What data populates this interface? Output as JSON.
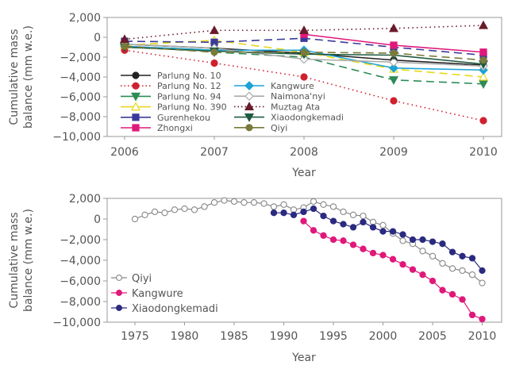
{
  "chart_data": [
    {
      "type": "line",
      "panel": "top",
      "title": "",
      "xlabel": "Year",
      "ylabel": "Cumulative mass balance (mm w.e.)",
      "x": [
        2006,
        2007,
        2008,
        2009,
        2010
      ],
      "xticks": [
        "2006",
        "2007",
        "2008",
        "2009",
        "2010"
      ],
      "yticks": [
        "2,000",
        "0",
        "−2,000",
        "−4,000",
        "−6,000",
        "−8,000",
        "−10,000"
      ],
      "ytick_values": [
        2000,
        0,
        -2000,
        -4000,
        -6000,
        -8000,
        -10000
      ],
      "ylim": [
        -10000,
        2000
      ],
      "xlim": [
        2005.8,
        2010.2
      ],
      "grid": false,
      "legend_position": "lower-left",
      "series": [
        {
          "name": "Parlung No. 10",
          "color": "#222222",
          "style": "solid",
          "marker": "circle",
          "values": [
            -700,
            -1100,
            -1600,
            -2300,
            -2800
          ]
        },
        {
          "name": "Parlung No. 12",
          "color": "#d0202f",
          "style": "dotted",
          "marker": "circle",
          "values": [
            -1300,
            -2600,
            -4000,
            -6400,
            -8400
          ]
        },
        {
          "name": "Parlung No. 94",
          "color": "#2e8b57",
          "style": "dashed",
          "marker": "triangle-down",
          "values": [
            -900,
            -1500,
            -2000,
            -4300,
            -4700
          ]
        },
        {
          "name": "Parlung No. 390",
          "color": "#e8d81a",
          "style": "dashed",
          "marker": "triangle-up-open",
          "values": [
            -800,
            -300,
            -1500,
            -3200,
            -4000
          ]
        },
        {
          "name": "Gurenhekou",
          "color": "#3a3a9a",
          "style": "dashed",
          "marker": "square",
          "values": [
            -400,
            -500,
            -100,
            -1000,
            -1800
          ]
        },
        {
          "name": "Zhongxi",
          "color": "#e0187a",
          "style": "solid",
          "marker": "square",
          "values": [
            null,
            null,
            300,
            -800,
            -1500
          ]
        },
        {
          "name": "Kangwure",
          "color": "#1ba3d6",
          "style": "solid",
          "marker": "diamond",
          "values": [
            -900,
            -1300,
            -1300,
            -3100,
            -3300
          ]
        },
        {
          "name": "Naimona'nyi",
          "color": "#aaaaaa",
          "style": "solid",
          "marker": "diamond-open",
          "values": [
            -700,
            -1100,
            -2200,
            -2500,
            -2900
          ]
        },
        {
          "name": "Muztag Ata",
          "color": "#6a1a2a",
          "style": "dotted",
          "marker": "triangle-up",
          "values": [
            -200,
            700,
            700,
            900,
            1200
          ]
        },
        {
          "name": "Xiaodongkemadi",
          "color": "#1f5a40",
          "style": "solid",
          "marker": "triangle-down",
          "values": [
            -1000,
            -1400,
            -1700,
            -1800,
            -2700
          ]
        },
        {
          "name": "Qiyi",
          "color": "#7a7a3a",
          "style": "dashed",
          "marker": "circle",
          "values": [
            -900,
            -1500,
            -1500,
            -1600,
            -2300
          ]
        }
      ]
    },
    {
      "type": "line",
      "panel": "bottom",
      "title": "",
      "xlabel": "Year",
      "ylabel": "Cumulative mass balance (mm w.e.)",
      "xticks": [
        "1975",
        "1980",
        "1985",
        "1990",
        "1995",
        "2000",
        "2005",
        "2010"
      ],
      "xtick_values": [
        1975,
        1980,
        1985,
        1990,
        1995,
        2000,
        2005,
        2010
      ],
      "yticks": [
        "2,000",
        "0",
        "−2,000",
        "−4,000",
        "−6,000",
        "−8,000",
        "−10,000"
      ],
      "ytick_values": [
        2000,
        0,
        -2000,
        -4000,
        -6000,
        -8000,
        -10000
      ],
      "ylim": [
        -10000,
        2000
      ],
      "xlim": [
        1972,
        2012
      ],
      "grid": false,
      "legend_position": "lower-left",
      "series": [
        {
          "name": "Qiyi",
          "color": "#888888",
          "marker": "circle-open",
          "x": [
            1975,
            1976,
            1977,
            1978,
            1979,
            1980,
            1981,
            1982,
            1983,
            1984,
            1985,
            1986,
            1987,
            1988,
            1989,
            1990,
            1991,
            1992,
            1993,
            1994,
            1995,
            1996,
            1997,
            1998,
            1999,
            2000,
            2001,
            2002,
            2003,
            2004,
            2005,
            2006,
            2007,
            2008,
            2009,
            2010
          ],
          "values": [
            0,
            400,
            700,
            600,
            900,
            1000,
            900,
            1200,
            1600,
            1800,
            1700,
            1600,
            1600,
            1500,
            1200,
            1400,
            900,
            1100,
            1700,
            1400,
            1200,
            700,
            400,
            300,
            -300,
            -600,
            -1400,
            -2100,
            -2400,
            -3100,
            -3600,
            -4300,
            -4800,
            -5000,
            -5400,
            -6200
          ]
        },
        {
          "name": "Kangwure",
          "color": "#e0187a",
          "marker": "circle",
          "x": [
            1992,
            1993,
            1994,
            1995,
            1996,
            1997,
            1998,
            1999,
            2000,
            2001,
            2002,
            2003,
            2004,
            2005,
            2006,
            2007,
            2008,
            2009,
            2010
          ],
          "values": [
            -200,
            -1100,
            -1600,
            -2000,
            -2100,
            -2500,
            -2900,
            -3300,
            -3500,
            -3900,
            -4400,
            -4900,
            -5400,
            -6000,
            -6900,
            -7300,
            -7800,
            -9300,
            -9700
          ]
        },
        {
          "name": "Xiaodongkemadi",
          "color": "#2a2a80",
          "marker": "circle",
          "x": [
            1989,
            1990,
            1991,
            1992,
            1993,
            1994,
            1995,
            1996,
            1997,
            1998,
            1999,
            2000,
            2001,
            2002,
            2003,
            2004,
            2005,
            2006,
            2007,
            2008,
            2009,
            2010
          ],
          "values": [
            600,
            600,
            400,
            700,
            1000,
            300,
            -200,
            -500,
            -800,
            -300,
            -800,
            -1200,
            -1200,
            -1500,
            -2000,
            -2000,
            -2200,
            -2400,
            -3200,
            -3600,
            -3800,
            -5000
          ]
        }
      ]
    }
  ]
}
